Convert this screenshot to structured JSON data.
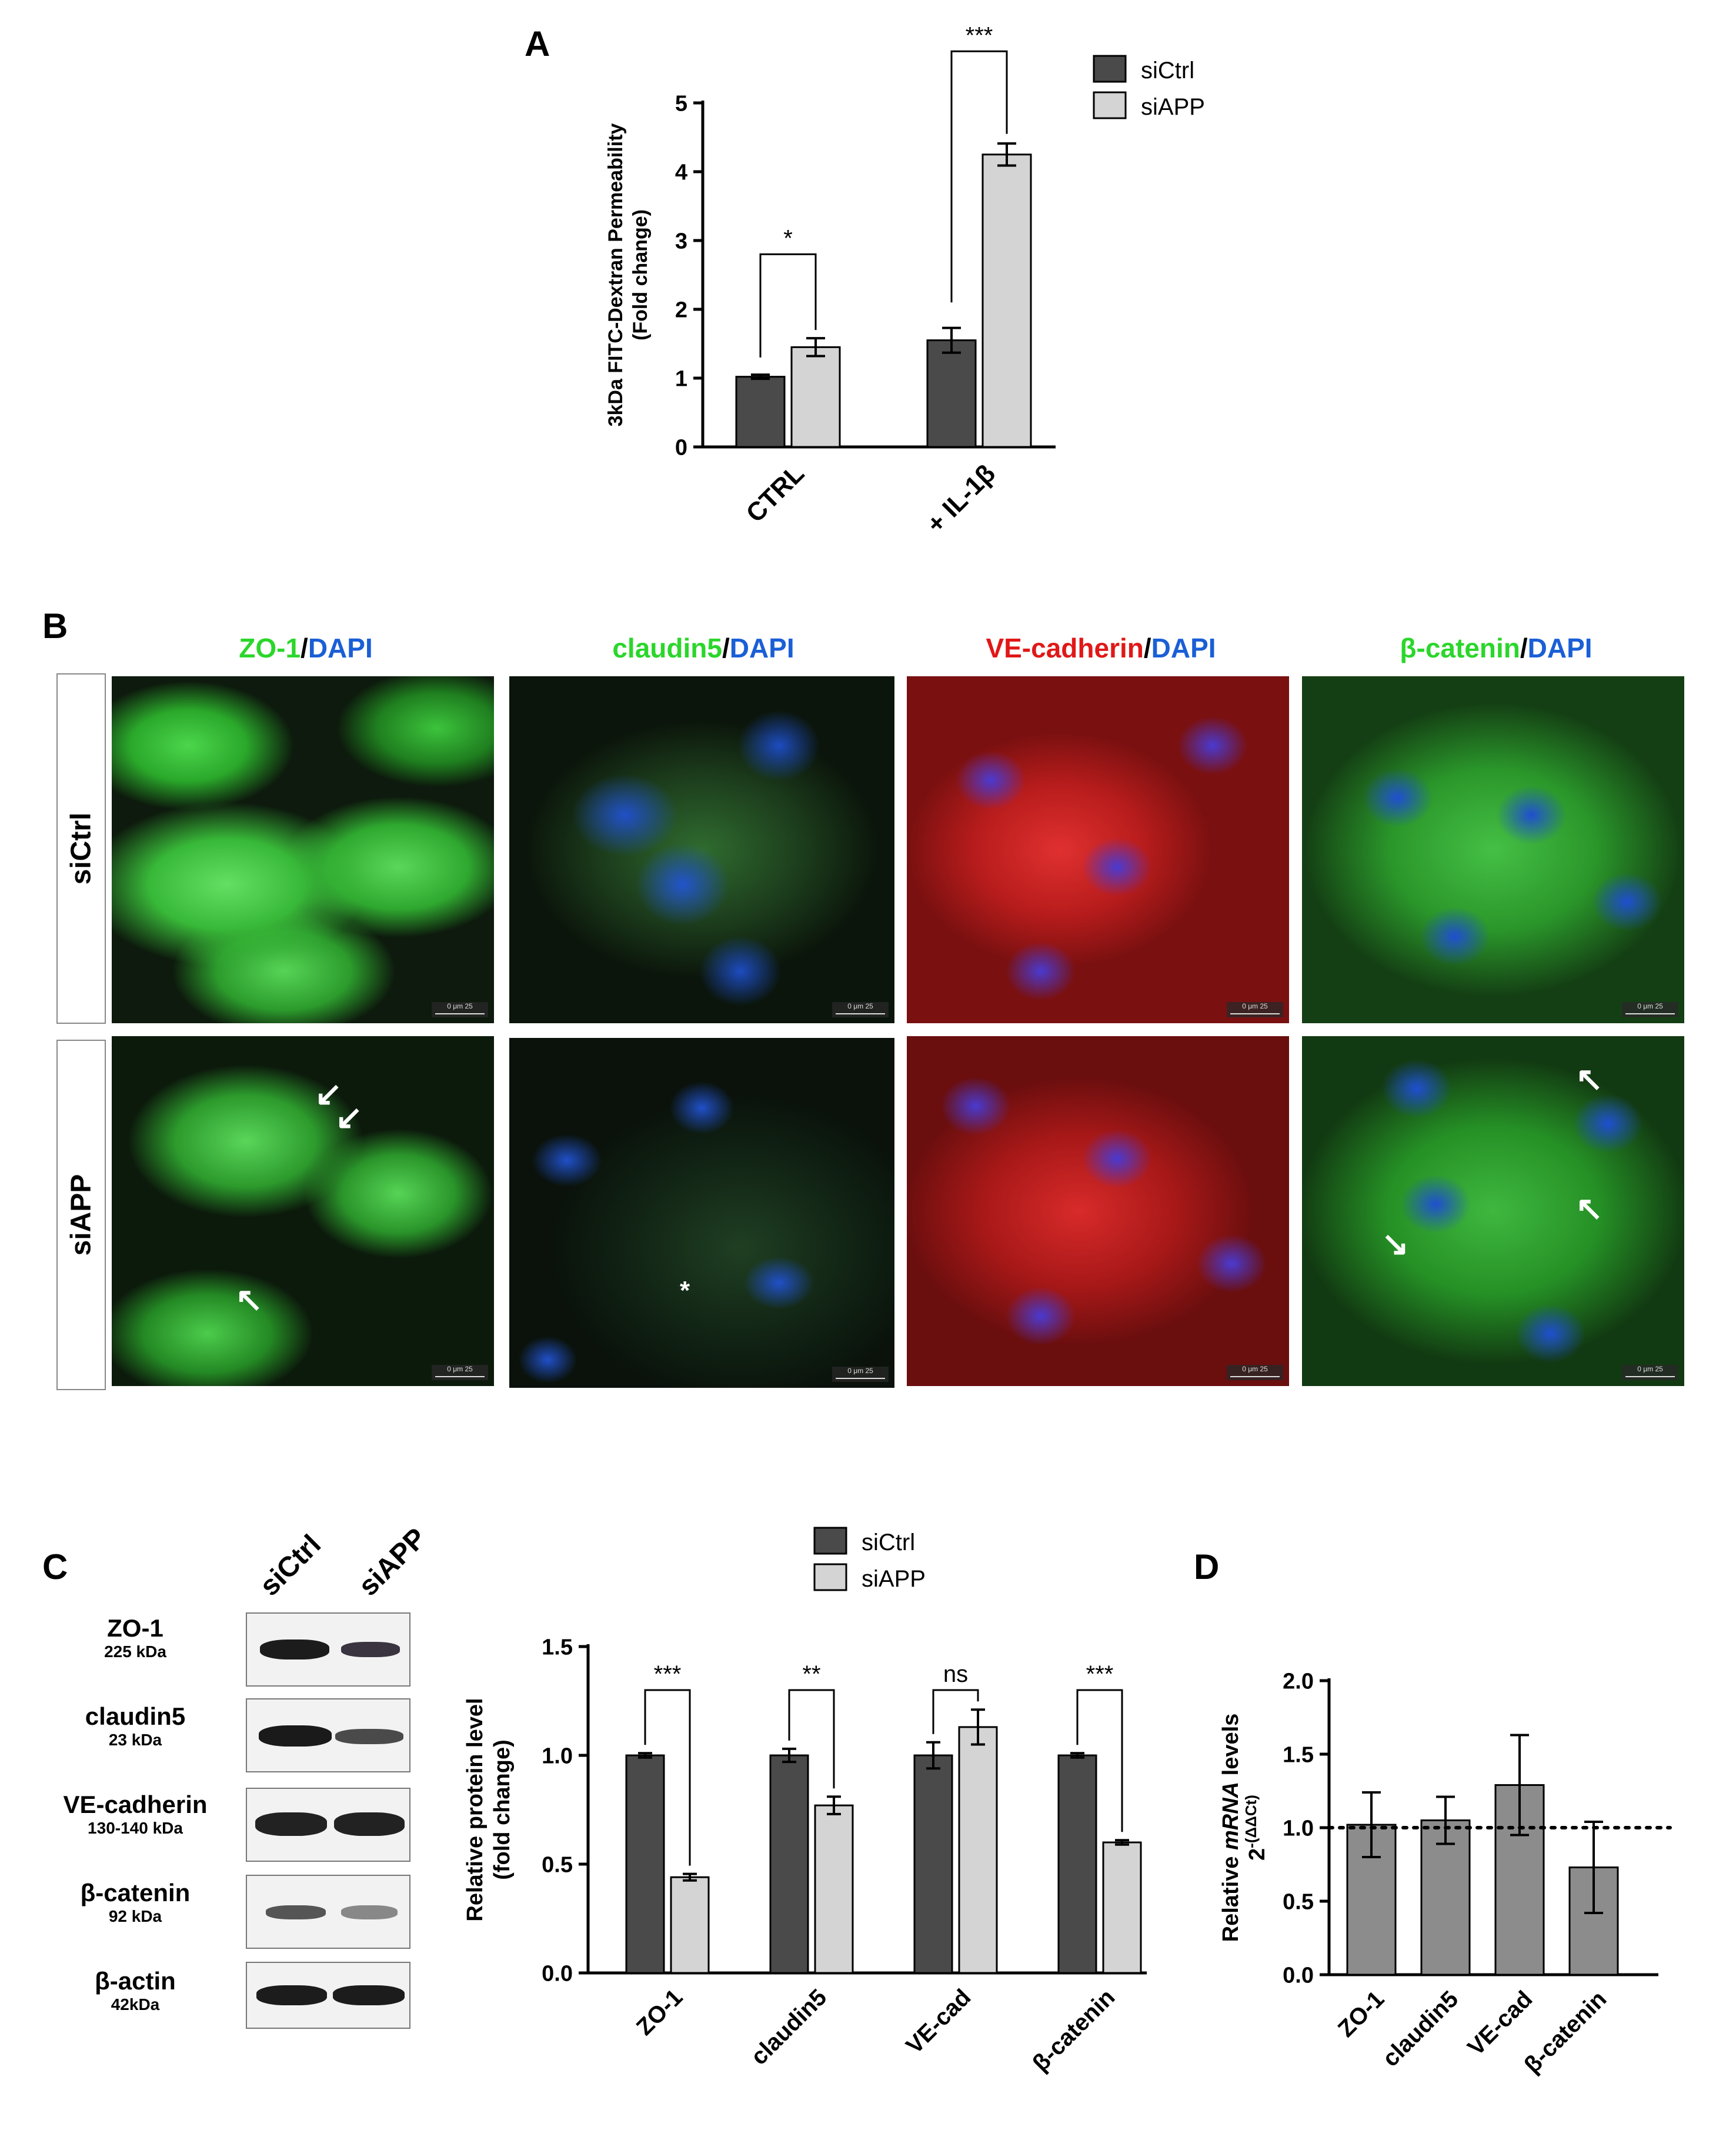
{
  "panels": {
    "a": "A",
    "b": "B",
    "c": "C",
    "d": "D"
  },
  "colors": {
    "siCtrl": "#4a4a4a",
    "siAPP": "#d4d4d4",
    "single": "#8c8c8c",
    "green": "#2bd62b",
    "blue": "#1a5fd6",
    "red": "#e01818"
  },
  "panel_b": {
    "titles": [
      {
        "marker": "ZO-1",
        "marker_color": "green",
        "sep": "/",
        "dapi": "DAPI"
      },
      {
        "marker": "claudin5",
        "marker_color": "green",
        "sep": "/",
        "dapi": "DAPI"
      },
      {
        "marker": "VE-cadherin",
        "marker_color": "red",
        "sep": "/",
        "dapi": "DAPI"
      },
      {
        "marker": "β-catenin",
        "marker_color": "green",
        "sep": "/",
        "dapi": "DAPI"
      }
    ],
    "rows": [
      "siCtrl",
      "siAPP"
    ],
    "scale_bar_text": "0   μm   25",
    "star_annotation": "*"
  },
  "panel_c_blot": {
    "lanes": [
      "siCtrl",
      "siAPP"
    ],
    "proteins": [
      {
        "name": "ZO-1",
        "kda": "225 kDa"
      },
      {
        "name": "claudin5",
        "kda": "23 kDa"
      },
      {
        "name": "VE-cadherin",
        "kda": "130-140 kDa"
      },
      {
        "name": "β-catenin",
        "kda": "92 kDa"
      },
      {
        "name": "β-actin",
        "kda": "42kDa"
      }
    ]
  },
  "chart_data": [
    {
      "id": "A",
      "type": "bar",
      "categories": [
        "CTRL",
        "+ IL-1β"
      ],
      "series": [
        {
          "name": "siCtrl",
          "values": [
            1.02,
            1.55
          ],
          "errors": [
            0.03,
            0.18
          ]
        },
        {
          "name": "siAPP",
          "values": [
            1.45,
            4.25
          ],
          "errors": [
            0.13,
            0.16
          ]
        }
      ],
      "ylabel": "3kDa FITC-Dextran Permeability",
      "ylabel2": "(Fold change)",
      "xlabel": "",
      "ylim": [
        0,
        5
      ],
      "yticks": [
        "0",
        "1",
        "2",
        "3",
        "4",
        "5"
      ],
      "significance": [
        "*",
        "***"
      ],
      "legend": "top-right"
    },
    {
      "id": "C",
      "type": "bar",
      "categories": [
        "ZO-1",
        "claudin5",
        "VE-cad",
        "β-catenin"
      ],
      "series": [
        {
          "name": "siCtrl",
          "values": [
            1.0,
            1.0,
            1.0,
            1.0
          ],
          "errors": [
            0.01,
            0.03,
            0.06,
            0.01
          ]
        },
        {
          "name": "siAPP",
          "values": [
            0.44,
            0.77,
            1.13,
            0.6
          ],
          "errors": [
            0.015,
            0.04,
            0.08,
            0.01
          ]
        }
      ],
      "ylabel": "Relative protein level",
      "ylabel2": "(fold change)",
      "xlabel": "",
      "ylim": [
        0,
        1.5
      ],
      "yticks": [
        "0.0",
        "0.5",
        "1.0",
        "1.5"
      ],
      "significance": [
        "***",
        "**",
        "ns",
        "***"
      ],
      "legend": "top"
    },
    {
      "id": "D",
      "type": "bar",
      "categories": [
        "ZO-1",
        "claudin5",
        "VE-cad",
        "β-catenin"
      ],
      "values": [
        1.02,
        1.05,
        1.29,
        0.73
      ],
      "errors": [
        0.22,
        0.16,
        0.34,
        0.31
      ],
      "ylabel_prefix": "Relative ",
      "ylabel_italic": "mRNA",
      "ylabel_suffix": " levels",
      "ylabel2": "2",
      "ylabel2_sup": "-(ΔΔCt)",
      "xlabel": "",
      "ylim": [
        0,
        2.0
      ],
      "yticks": [
        "0.0",
        "0.5",
        "1.0",
        "1.5",
        "2.0"
      ],
      "reference_line": 1.0
    }
  ]
}
